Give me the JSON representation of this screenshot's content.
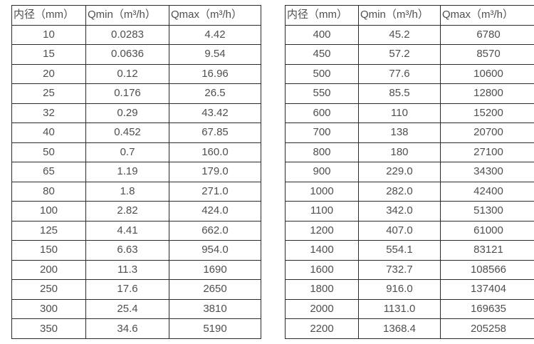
{
  "page": {
    "background_color": "#ffffff",
    "text_color": "#4f4f4f",
    "border_color": "#2b2b2b"
  },
  "chart_data": [
    {
      "type": "table",
      "name": "flow-table-small-diameters",
      "columns": [
        "内径（mm）",
        "Qmin（m³/h）",
        "Qmax（m³/h）"
      ],
      "rows": [
        [
          "10",
          "0.0283",
          "4.42"
        ],
        [
          "15",
          "0.0636",
          "9.54"
        ],
        [
          "20",
          "0.12",
          "16.96"
        ],
        [
          "25",
          "0.176",
          "26.5"
        ],
        [
          "32",
          "0.29",
          "43.42"
        ],
        [
          "40",
          "0.452",
          "67.85"
        ],
        [
          "50",
          "0.7",
          "160.0"
        ],
        [
          "65",
          "1.19",
          "179.0"
        ],
        [
          "80",
          "1.8",
          "271.0"
        ],
        [
          "100",
          "2.82",
          "424.0"
        ],
        [
          "125",
          "4.41",
          "662.0"
        ],
        [
          "150",
          "6.63",
          "954.0"
        ],
        [
          "200",
          "11.3",
          "1690"
        ],
        [
          "250",
          "17.6",
          "2650"
        ],
        [
          "300",
          "25.4",
          "3810"
        ],
        [
          "350",
          "34.6",
          "5190"
        ]
      ]
    },
    {
      "type": "table",
      "name": "flow-table-large-diameters",
      "columns": [
        "内径（mm）",
        "Qmin（m³/h）",
        "Qmax（m³/h）"
      ],
      "rows": [
        [
          "400",
          "45.2",
          "6780"
        ],
        [
          "450",
          "57.2",
          "8570"
        ],
        [
          "500",
          "77.6",
          "10600"
        ],
        [
          "550",
          "85.5",
          "12800"
        ],
        [
          "600",
          "110",
          "15200"
        ],
        [
          "700",
          "138",
          "20700"
        ],
        [
          "800",
          "180",
          "27100"
        ],
        [
          "900",
          "229.0",
          "34300"
        ],
        [
          "1000",
          "282.0",
          "42400"
        ],
        [
          "1100",
          "342.0",
          "51300"
        ],
        [
          "1200",
          "407.0",
          "61000"
        ],
        [
          "1400",
          "554.1",
          "83121"
        ],
        [
          "1600",
          "732.7",
          "108566"
        ],
        [
          "1800",
          "916.0",
          "137404"
        ],
        [
          "2000",
          "1131.0",
          "169635"
        ],
        [
          "2200",
          "1368.4",
          "205258"
        ]
      ]
    }
  ]
}
